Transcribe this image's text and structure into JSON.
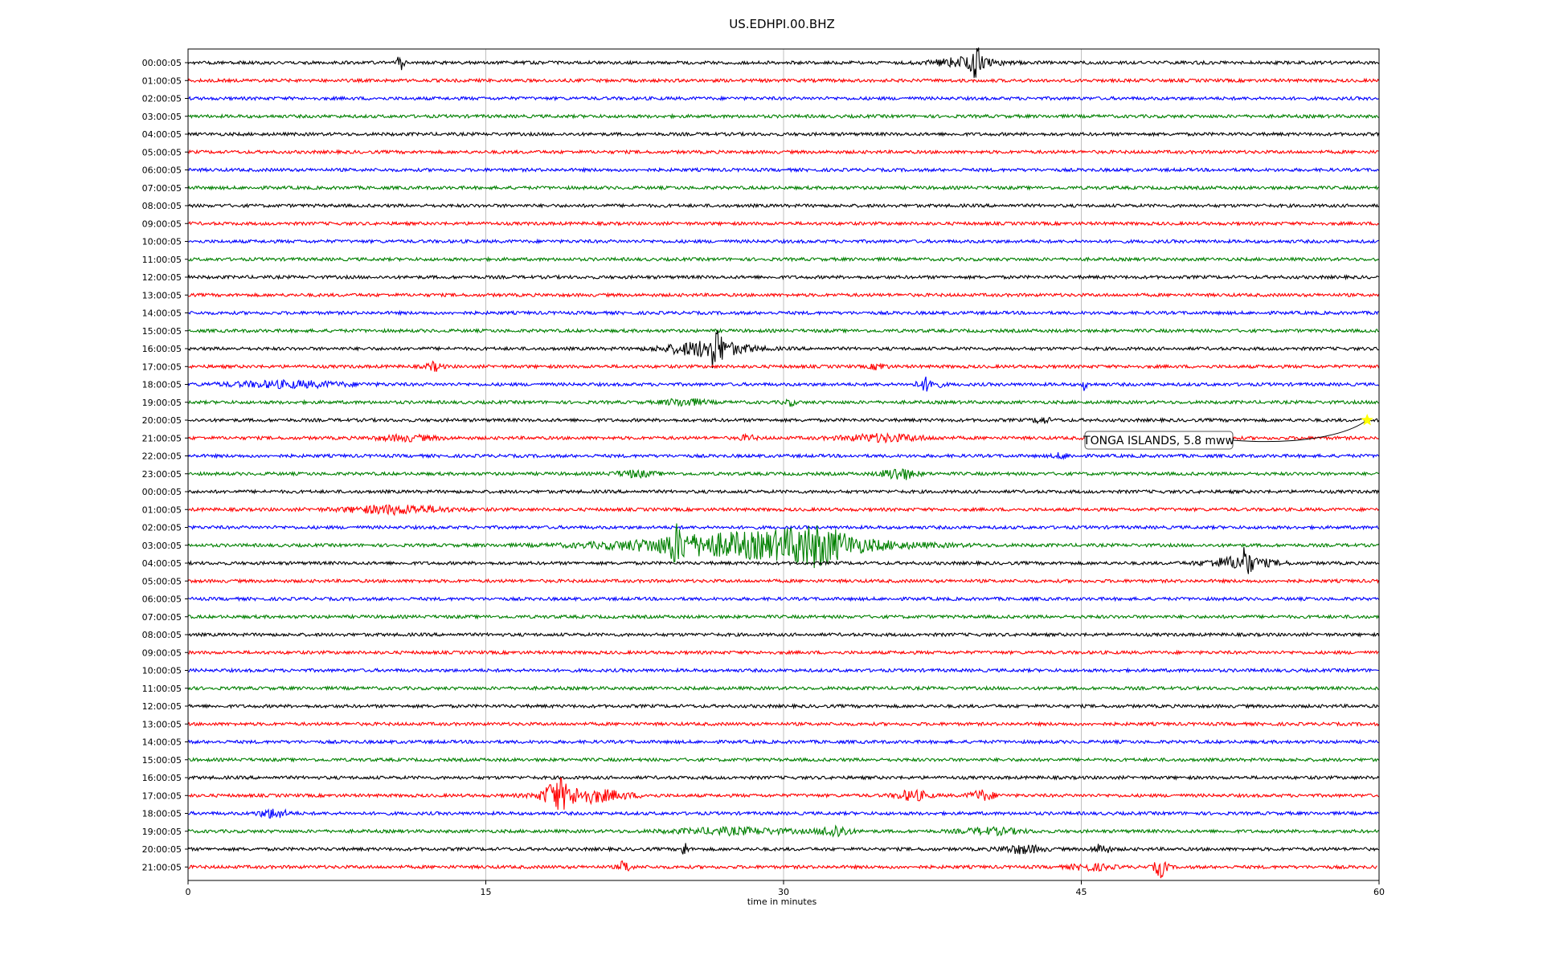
{
  "chart_data": {
    "type": "line",
    "title": "US.EDHPI.00.BHZ",
    "xlabel": "time in minutes",
    "ylabel": "",
    "xlim": [
      0,
      60
    ],
    "x_ticks": [
      0,
      15,
      30,
      45,
      60
    ],
    "grid": "vertical",
    "trace_colors": [
      "#000000",
      "#ff0000",
      "#0000ff",
      "#008000"
    ],
    "row_labels": [
      "00:00:05",
      "01:00:05",
      "02:00:05",
      "03:00:05",
      "04:00:05",
      "05:00:05",
      "06:00:05",
      "07:00:05",
      "08:00:05",
      "09:00:05",
      "10:00:05",
      "11:00:05",
      "12:00:05",
      "13:00:05",
      "14:00:05",
      "15:00:05",
      "16:00:05",
      "17:00:05",
      "18:00:05",
      "19:00:05",
      "20:00:05",
      "21:00:05",
      "22:00:05",
      "23:00:05",
      "00:00:05",
      "01:00:05",
      "02:00:05",
      "03:00:05",
      "04:00:05",
      "05:00:05",
      "06:00:05",
      "07:00:05",
      "08:00:05",
      "09:00:05",
      "10:00:05",
      "11:00:05",
      "12:00:05",
      "13:00:05",
      "14:00:05",
      "15:00:05",
      "16:00:05",
      "17:00:05",
      "18:00:05",
      "19:00:05",
      "20:00:05",
      "21:00:05"
    ],
    "last_row_end_minute": 59.9,
    "events": [
      {
        "row": 0,
        "minute": 10.7,
        "amp": 1.0,
        "dur": 0.15
      },
      {
        "row": 0,
        "minute": 39.2,
        "amp": 0.5,
        "dur": 1.5
      },
      {
        "row": 0,
        "minute": 39.7,
        "amp": 1.6,
        "dur": 0.2
      },
      {
        "row": 16,
        "minute": 26.2,
        "amp": 0.8,
        "dur": 2.0
      },
      {
        "row": 16,
        "minute": 26.6,
        "amp": 1.6,
        "dur": 0.3
      },
      {
        "row": 17,
        "minute": 12.4,
        "amp": 0.4,
        "dur": 0.4
      },
      {
        "row": 17,
        "minute": 34.8,
        "amp": 0.3,
        "dur": 0.4
      },
      {
        "row": 18,
        "minute": 5.0,
        "amp": 0.3,
        "dur": 3.0
      },
      {
        "row": 18,
        "minute": 37.3,
        "amp": 0.7,
        "dur": 0.5
      },
      {
        "row": 18,
        "minute": 45.2,
        "amp": 0.9,
        "dur": 0.1
      },
      {
        "row": 19,
        "minute": 25.0,
        "amp": 0.35,
        "dur": 1.0
      },
      {
        "row": 19,
        "minute": 30.3,
        "amp": 0.3,
        "dur": 0.3
      },
      {
        "row": 20,
        "minute": 43.0,
        "amp": 0.3,
        "dur": 0.4
      },
      {
        "row": 21,
        "minute": 11.0,
        "amp": 0.25,
        "dur": 1.5
      },
      {
        "row": 21,
        "minute": 35.0,
        "amp": 0.35,
        "dur": 2.0
      },
      {
        "row": 21,
        "minute": 28.2,
        "amp": 0.25,
        "dur": 0.4
      },
      {
        "row": 22,
        "minute": 44.0,
        "amp": 0.25,
        "dur": 0.4
      },
      {
        "row": 23,
        "minute": 22.5,
        "amp": 0.3,
        "dur": 1.0
      },
      {
        "row": 23,
        "minute": 35.8,
        "amp": 0.6,
        "dur": 0.8
      },
      {
        "row": 25,
        "minute": 10.5,
        "amp": 0.4,
        "dur": 2.5
      },
      {
        "row": 27,
        "minute": 24.6,
        "amp": 1.3,
        "dur": 0.4
      },
      {
        "row": 27,
        "minute": 28.5,
        "amp": 1.3,
        "dur": 6.0
      },
      {
        "row": 27,
        "minute": 31.6,
        "amp": 1.2,
        "dur": 1.5
      },
      {
        "row": 28,
        "minute": 53.0,
        "amp": 0.6,
        "dur": 1.6
      },
      {
        "row": 28,
        "minute": 53.3,
        "amp": 1.4,
        "dur": 0.2
      },
      {
        "row": 41,
        "minute": 18.6,
        "amp": 1.3,
        "dur": 0.6
      },
      {
        "row": 41,
        "minute": 20.0,
        "amp": 0.7,
        "dur": 2.0
      },
      {
        "row": 41,
        "minute": 36.5,
        "amp": 0.5,
        "dur": 0.8
      },
      {
        "row": 41,
        "minute": 40.0,
        "amp": 0.5,
        "dur": 0.6
      },
      {
        "row": 42,
        "minute": 4.3,
        "amp": 0.45,
        "dur": 0.7
      },
      {
        "row": 43,
        "minute": 27.5,
        "amp": 0.3,
        "dur": 3.0
      },
      {
        "row": 43,
        "minute": 32.6,
        "amp": 0.6,
        "dur": 0.7
      },
      {
        "row": 43,
        "minute": 40.5,
        "amp": 0.3,
        "dur": 1.5
      },
      {
        "row": 44,
        "minute": 25.0,
        "amp": 0.8,
        "dur": 0.15
      },
      {
        "row": 44,
        "minute": 42.0,
        "amp": 0.4,
        "dur": 1.0
      },
      {
        "row": 44,
        "minute": 46.0,
        "amp": 0.5,
        "dur": 0.4
      },
      {
        "row": 45,
        "minute": 22.0,
        "amp": 0.6,
        "dur": 0.3
      },
      {
        "row": 45,
        "minute": 49.0,
        "amp": 1.0,
        "dur": 0.3
      },
      {
        "row": 45,
        "minute": 45.5,
        "amp": 0.3,
        "dur": 1.0
      }
    ],
    "annotations": [
      {
        "text": "TONGA ISLANDS, 5.8 mww",
        "row": 20,
        "minute": 59.4,
        "marker_color": "#ffff00"
      }
    ]
  }
}
